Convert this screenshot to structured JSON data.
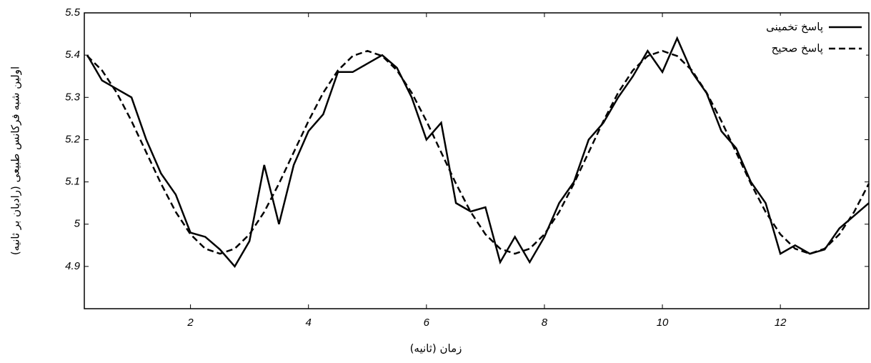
{
  "chart_data": {
    "type": "line",
    "x_label": "زمان (ثانیه)",
    "y_label": "اولین شبه فرکانس طبیعی (رادیان بر ثانیه)",
    "x": [
      0.25,
      0.5,
      0.75,
      1.0,
      1.25,
      1.5,
      1.75,
      2.0,
      2.25,
      2.5,
      2.75,
      3.0,
      3.25,
      3.5,
      3.75,
      4.0,
      4.25,
      4.5,
      4.75,
      5.0,
      5.25,
      5.5,
      5.75,
      6.0,
      6.25,
      6.5,
      6.75,
      7.0,
      7.25,
      7.5,
      7.75,
      8.0,
      8.25,
      8.5,
      8.75,
      9.0,
      9.25,
      9.5,
      9.75,
      10.0,
      10.25,
      10.5,
      10.75,
      11.0,
      11.25,
      11.5,
      11.75,
      12.0,
      12.25,
      12.5,
      12.75,
      13.0,
      13.25,
      13.5
    ],
    "series": [
      {
        "name": "پاسخ تخمینی",
        "color": "#000000",
        "dash": false,
        "values": [
          5.4,
          5.34,
          5.32,
          5.3,
          5.2,
          5.12,
          5.07,
          4.98,
          4.97,
          4.94,
          4.9,
          4.96,
          5.14,
          5.0,
          5.14,
          5.22,
          5.26,
          5.36,
          5.36,
          5.38,
          5.4,
          5.37,
          5.3,
          5.2,
          5.24,
          5.05,
          5.03,
          5.04,
          4.91,
          4.97,
          4.91,
          4.97,
          5.05,
          5.1,
          5.2,
          5.24,
          5.3,
          5.35,
          5.41,
          5.36,
          5.44,
          5.36,
          5.31,
          5.22,
          5.18,
          5.1,
          5.05,
          4.93,
          4.95,
          4.93,
          4.94,
          4.99,
          5.02,
          5.05
        ]
      },
      {
        "name": "پاسخ صحیح",
        "color": "#000000",
        "dash": true,
        "values": [
          5.398,
          5.364,
          5.311,
          5.244,
          5.17,
          5.096,
          5.029,
          4.976,
          4.942,
          4.93,
          4.942,
          4.976,
          5.029,
          5.096,
          5.17,
          5.244,
          5.311,
          5.364,
          5.398,
          5.41,
          5.398,
          5.364,
          5.311,
          5.244,
          5.17,
          5.096,
          5.029,
          4.976,
          4.942,
          4.93,
          4.942,
          4.976,
          5.029,
          5.096,
          5.17,
          5.244,
          5.311,
          5.364,
          5.398,
          5.41,
          5.398,
          5.364,
          5.311,
          5.244,
          5.17,
          5.096,
          5.029,
          4.976,
          4.942,
          4.93,
          4.942,
          4.976,
          5.029,
          5.096
        ]
      }
    ],
    "xlim": [
      0.2,
      13.5
    ],
    "xticks": [
      2,
      4,
      6,
      8,
      10,
      12
    ],
    "ylim": [
      4.8,
      5.5
    ],
    "yticks": [
      4.9,
      5,
      5.1,
      5.2,
      5.3,
      5.4,
      5.5
    ],
    "legend": "upper right",
    "grid": false
  }
}
